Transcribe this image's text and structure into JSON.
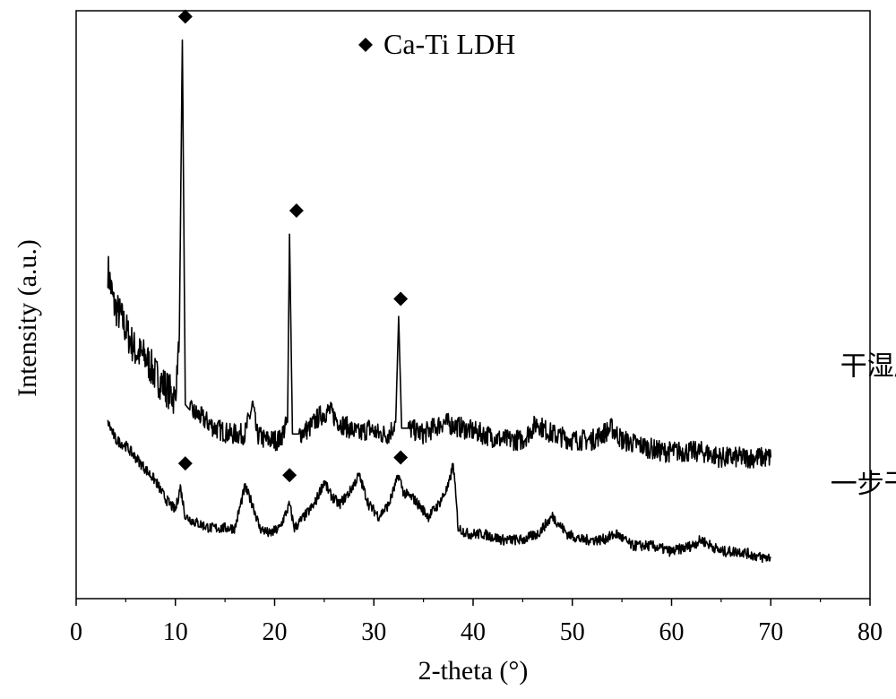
{
  "chart_data": {
    "type": "line",
    "title": "",
    "xlabel": "2-theta (°)",
    "ylabel": "Intensity (a.u.)",
    "xlim": [
      0,
      80
    ],
    "ylim": [
      0,
      100
    ],
    "xticks": [
      0,
      10,
      20,
      30,
      40,
      50,
      60,
      70,
      80
    ],
    "grid": false,
    "legend": {
      "position": "top-center",
      "entries": [
        {
          "marker": "diamond",
          "label": "Ca-Ti LDH",
          "color": "#000000"
        }
      ]
    },
    "series": [
      {
        "name": "干湿磨",
        "color": "#000000",
        "x": [
          3.2,
          3.8,
          4.5,
          5.2,
          6,
          7,
          8,
          9,
          10,
          10.4,
          10.7,
          11,
          11.5,
          12.5,
          14,
          15.5,
          17,
          17.8,
          18.2,
          19,
          20.5,
          21.3,
          21.5,
          21.8,
          22.5,
          23.5,
          24.5,
          25.5,
          26.5,
          27.5,
          28.5,
          29.5,
          30.5,
          31.5,
          32.2,
          32.5,
          32.8,
          33.5,
          35,
          37,
          39,
          41,
          43,
          45,
          46.5,
          47,
          48,
          50,
          52,
          54,
          54.5,
          55,
          57,
          59,
          61,
          63,
          65,
          67,
          69,
          70
        ],
        "y": [
          56,
          50,
          48,
          45,
          42,
          41,
          38,
          36,
          34,
          45,
          95,
          33,
          32,
          31,
          29,
          28,
          28,
          33,
          28,
          27,
          27,
          30,
          62,
          28,
          28,
          29,
          31,
          32,
          30,
          29,
          28,
          29,
          28,
          28,
          30,
          48,
          29,
          29,
          28,
          30,
          29,
          28,
          27,
          27,
          30,
          29,
          28,
          27,
          27,
          29,
          28,
          27,
          26,
          25,
          25,
          25,
          24,
          24,
          24,
          24
        ]
      },
      {
        "name": "一步干磨",
        "color": "#000000",
        "x": [
          3.2,
          4,
          5,
          6,
          7,
          8,
          9,
          10,
          10.5,
          11,
          12,
          13.5,
          15,
          16,
          17,
          17.8,
          18.5,
          19.5,
          20.5,
          21.5,
          22,
          23,
          24,
          25,
          25.5,
          26.5,
          27.5,
          28.5,
          29.5,
          30.5,
          31.5,
          32.5,
          33,
          34,
          35.5,
          36.5,
          37.5,
          38,
          38.5,
          39.5,
          41,
          43,
          45,
          46.5,
          48,
          49.5,
          51,
          53,
          54.5,
          56,
          58,
          60,
          62,
          63,
          65,
          67,
          69,
          70
        ],
        "y": [
          30,
          27,
          26,
          24,
          22,
          20,
          17,
          15,
          19,
          14,
          13,
          12,
          12,
          12,
          19,
          16,
          12,
          11,
          12,
          16,
          12,
          14,
          16,
          20,
          18,
          16,
          18,
          21,
          16,
          14,
          16,
          21,
          18,
          17,
          14,
          16,
          19,
          23,
          12,
          11,
          11,
          10,
          10,
          11,
          14,
          11,
          10,
          10,
          11,
          9,
          9,
          8,
          9,
          10,
          8,
          8,
          7,
          7
        ]
      }
    ],
    "series_labels": [
      {
        "text": "干湿磨",
        "x": 77,
        "y": 38
      },
      {
        "text": "一步干磨",
        "x": 76,
        "y": 18
      }
    ],
    "markers": [
      {
        "x": 11,
        "y": 99
      },
      {
        "x": 22.2,
        "y": 66
      },
      {
        "x": 32.7,
        "y": 51
      },
      {
        "x": 11,
        "y": 23
      },
      {
        "x": 21.5,
        "y": 21
      },
      {
        "x": 32.7,
        "y": 24
      }
    ]
  }
}
